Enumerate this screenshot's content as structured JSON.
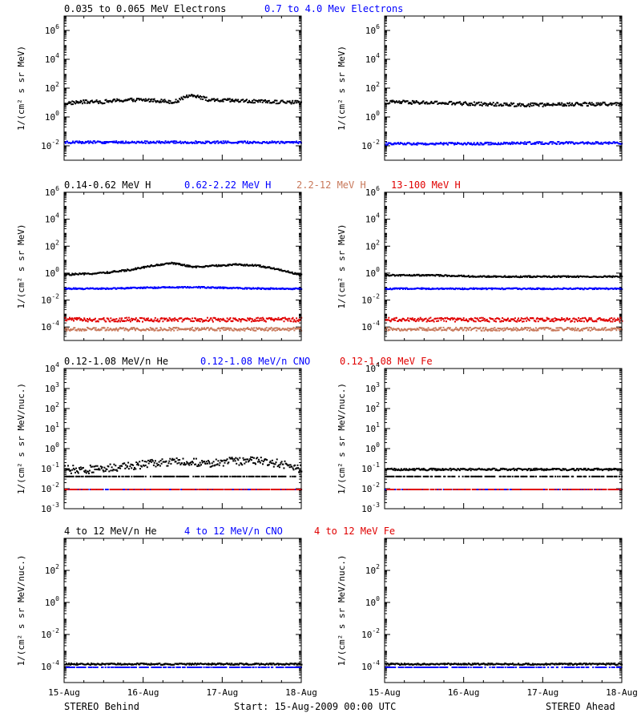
{
  "footer": {
    "left": "STEREO Behind",
    "center": "Start: 15-Aug-2009 00:00 UTC",
    "right": "STEREO Ahead"
  },
  "x_tick_labels": [
    "15-Aug",
    "16-Aug",
    "17-Aug",
    "18-Aug"
  ],
  "chart_data": [
    {
      "type": "scatter",
      "panel": "electrons",
      "spacecraft": "STEREO Behind",
      "x": [
        "15-Aug",
        "18-Aug"
      ],
      "yscale": "log",
      "ylim_exp": [
        -3,
        7
      ],
      "ytick_exponents": [
        -2,
        0,
        2,
        4,
        6
      ],
      "ylabel": "1/(cm² s sr MeV)",
      "legend": [
        {
          "label": "0.035 to 0.065 MeV Electrons",
          "color": "#000000"
        },
        {
          "label": "0.7 to 4.0 Mev Electrons",
          "color": "#0000ff"
        }
      ],
      "series": [
        {
          "color": "#000000",
          "level_exp": [
            1.0,
            1.1,
            1.1,
            1.2,
            1.25,
            1.2,
            1.1,
            1.6,
            1.2,
            1.2,
            1.15,
            1.1,
            1.1,
            1.05
          ],
          "scatter": 0.12
        },
        {
          "color": "#0000ff",
          "level_exp": [
            -1.7,
            -1.7,
            -1.7,
            -1.7,
            -1.7,
            -1.7,
            -1.7
          ],
          "scatter": 0.08
        }
      ]
    },
    {
      "type": "scatter",
      "panel": "electrons",
      "spacecraft": "STEREO Ahead",
      "x": [
        "15-Aug",
        "18-Aug"
      ],
      "yscale": "log",
      "ylim_exp": [
        -3,
        7
      ],
      "ytick_exponents": [
        -2,
        0,
        2,
        4,
        6
      ],
      "ylabel": "1/(cm² s sr MeV)",
      "legend": [],
      "series": [
        {
          "color": "#000000",
          "level_exp": [
            1.1,
            1.05,
            1.0,
            0.95,
            0.9,
            0.9,
            0.95,
            0.95
          ],
          "scatter": 0.12
        },
        {
          "color": "#0000ff",
          "level_exp": [
            -1.8,
            -1.8,
            -1.8,
            -1.75,
            -1.75,
            -1.75
          ],
          "scatter": 0.08
        }
      ]
    },
    {
      "type": "scatter",
      "panel": "protons",
      "spacecraft": "STEREO Behind",
      "x": [
        "15-Aug",
        "18-Aug"
      ],
      "yscale": "log",
      "ylim_exp": [
        -5,
        6
      ],
      "ytick_exponents": [
        -4,
        -2,
        0,
        2,
        4,
        6
      ],
      "ylabel": "1/(cm² s sr MeV)",
      "legend": [
        {
          "label": "0.14-0.62 MeV H",
          "color": "#000000"
        },
        {
          "label": "0.62-2.22 MeV H",
          "color": "#0000ff"
        },
        {
          "label": "2.2-12 MeV H",
          "color": "#c8785a"
        },
        {
          "label": "13-100 MeV H",
          "color": "#e00000"
        }
      ],
      "series": [
        {
          "color": "#000000",
          "level_exp": [
            -0.05,
            0.0,
            0.1,
            0.3,
            0.6,
            0.8,
            0.5,
            0.6,
            0.7,
            0.6,
            0.3,
            -0.1
          ],
          "scatter": 0.06
        },
        {
          "color": "#0000ff",
          "level_exp": [
            -1.1,
            -1.1,
            -1.05,
            -1.0,
            -1.0,
            -1.05,
            -1.1,
            -1.1
          ],
          "scatter": 0.05
        },
        {
          "color": "#c8785a",
          "level_exp": [
            -4.1,
            -4.1,
            -4.1,
            -4.1
          ],
          "scatter": 0.12
        },
        {
          "color": "#e00000",
          "level_exp": [
            -3.4,
            -3.4,
            -3.4,
            -3.4
          ],
          "scatter": 0.15
        }
      ]
    },
    {
      "type": "scatter",
      "panel": "protons",
      "spacecraft": "STEREO Ahead",
      "x": [
        "15-Aug",
        "18-Aug"
      ],
      "yscale": "log",
      "ylim_exp": [
        -5,
        6
      ],
      "ytick_exponents": [
        -4,
        -2,
        0,
        2,
        4,
        6
      ],
      "ylabel": "1/(cm² s sr MeV)",
      "legend": [],
      "series": [
        {
          "color": "#000000",
          "level_exp": [
            -0.1,
            -0.1,
            -0.2,
            -0.2,
            -0.2,
            -0.2
          ],
          "scatter": 0.05
        },
        {
          "color": "#0000ff",
          "level_exp": [
            -1.1,
            -1.1,
            -1.1,
            -1.1
          ],
          "scatter": 0.05
        },
        {
          "color": "#c8785a",
          "level_exp": [
            -4.1,
            -4.1,
            -4.1,
            -4.1
          ],
          "scatter": 0.12
        },
        {
          "color": "#e00000",
          "level_exp": [
            -3.4,
            -3.4,
            -3.4,
            -3.4
          ],
          "scatter": 0.15
        }
      ]
    },
    {
      "type": "scatter",
      "panel": "low-energy-ions",
      "spacecraft": "STEREO Behind",
      "x": [
        "15-Aug",
        "18-Aug"
      ],
      "yscale": "log",
      "ylim_exp": [
        -3,
        4
      ],
      "ytick_exponents": [
        -3,
        -2,
        -1,
        0,
        1,
        2,
        3,
        4
      ],
      "ylabel": "1/(cm² s sr MeV/nuc.)",
      "legend": [
        {
          "label": "0.12-1.08 MeV/n He",
          "color": "#000000"
        },
        {
          "label": "0.12-1.08 MeV/n CNO",
          "color": "#0000ff"
        },
        {
          "label": "0.12-1.08 MeV Fe",
          "color": "#e00000"
        }
      ],
      "series": [
        {
          "color": "#000000",
          "level_exp": [
            -1.35,
            -1.35
          ],
          "scatter": 0.0
        },
        {
          "color": "#000000",
          "level_exp": [
            -1.0,
            -1.0,
            -0.9,
            -0.8,
            -0.65,
            -0.6,
            -0.7,
            -0.6,
            -0.55,
            -0.7,
            -1.0
          ],
          "scatter": 0.2
        },
        {
          "color": "#0000ff",
          "level_exp": [
            -2.0,
            -2.0
          ],
          "scatter": 0.0
        },
        {
          "color": "#e00000",
          "level_exp": [
            -2.0,
            -2.0
          ],
          "scatter": 0.0
        }
      ]
    },
    {
      "type": "scatter",
      "panel": "low-energy-ions",
      "spacecraft": "STEREO Ahead",
      "x": [
        "15-Aug",
        "18-Aug"
      ],
      "yscale": "log",
      "ylim_exp": [
        -3,
        4
      ],
      "ytick_exponents": [
        -3,
        -2,
        -1,
        0,
        1,
        2,
        3,
        4
      ],
      "ylabel": "1/(cm² s sr MeV/nuc.)",
      "legend": [],
      "series": [
        {
          "color": "#000000",
          "level_exp": [
            -1.35,
            -1.35
          ],
          "scatter": 0.0
        },
        {
          "color": "#000000",
          "level_exp": [
            -1.0,
            -1.0,
            -1.0
          ],
          "scatter": 0.05
        },
        {
          "color": "#0000ff",
          "level_exp": [
            -2.0,
            -2.0
          ],
          "scatter": 0.0
        },
        {
          "color": "#e00000",
          "level_exp": [
            -2.0,
            -2.0
          ],
          "scatter": 0.0
        }
      ]
    },
    {
      "type": "scatter",
      "panel": "high-energy-ions",
      "spacecraft": "STEREO Behind",
      "x": [
        "15-Aug",
        "18-Aug"
      ],
      "yscale": "log",
      "ylim_exp": [
        -5,
        4
      ],
      "ytick_exponents": [
        -4,
        -2,
        0,
        2
      ],
      "ylabel": "1/(cm² s sr MeV/nuc.)",
      "legend": [
        {
          "label": "4 to 12 MeV/n He",
          "color": "#000000"
        },
        {
          "label": "4 to 12 MeV/n CNO",
          "color": "#0000ff"
        },
        {
          "label": "4 to 12 MeV Fe",
          "color": "#e00000"
        }
      ],
      "series": [
        {
          "color": "#0000ff",
          "level_exp": [
            -4.0,
            -4.0
          ],
          "scatter": 0.0
        },
        {
          "color": "#000000",
          "level_exp": [
            -3.8,
            -3.8
          ],
          "scatter": 0.05
        }
      ]
    },
    {
      "type": "scatter",
      "panel": "high-energy-ions",
      "spacecraft": "STEREO Ahead",
      "x": [
        "15-Aug",
        "18-Aug"
      ],
      "yscale": "log",
      "ylim_exp": [
        -5,
        4
      ],
      "ytick_exponents": [
        -4,
        -2,
        0,
        2
      ],
      "ylabel": "1/(cm² s sr MeV/nuc.)",
      "legend": [],
      "series": [
        {
          "color": "#0000ff",
          "level_exp": [
            -4.0,
            -4.0
          ],
          "scatter": 0.0
        },
        {
          "color": "#000000",
          "level_exp": [
            -3.8,
            -3.8
          ],
          "scatter": 0.05
        }
      ]
    }
  ]
}
